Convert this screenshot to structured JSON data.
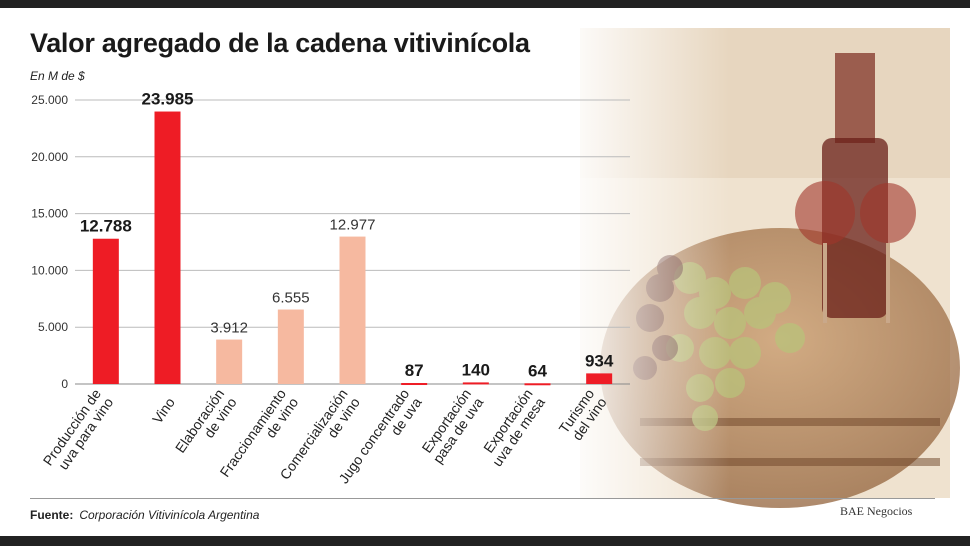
{
  "header": {
    "title": "Valor agregado de la cadena vitivinícola",
    "unit": "En M de $"
  },
  "footer": {
    "source_label": "Fuente:",
    "source_text": "Corporación Vitivinícola Argentina",
    "credit": "BAE Negocios"
  },
  "colors": {
    "highlight": "#ee1c25",
    "secondary": "#f6b9a0",
    "grid": "#bbbbbb"
  },
  "chart_data": {
    "type": "bar",
    "title": "Valor agregado de la cadena vitivinícola",
    "ylabel": "En M de $",
    "ylim": [
      0,
      25000
    ],
    "yticks": [
      "0",
      "5.000",
      "10.000",
      "15.000",
      "20.000",
      "25.000"
    ],
    "ytick_values": [
      0,
      5000,
      10000,
      15000,
      20000,
      25000
    ],
    "grid": true,
    "categories": [
      [
        "Producción de",
        "uva para vino"
      ],
      [
        "Vino"
      ],
      [
        "Elaboración",
        "de vino"
      ],
      [
        "Fraccionamiento",
        "de vino"
      ],
      [
        "Comercialización",
        "de vino"
      ],
      [
        "Jugo concentrado",
        "de uva"
      ],
      [
        "Exportación",
        "pasa de uva"
      ],
      [
        "Exportación",
        "uva de mesa"
      ],
      [
        "Turismo",
        "del vino"
      ]
    ],
    "values": [
      12788,
      23985,
      3912,
      6555,
      12977,
      87,
      140,
      64,
      934
    ],
    "labels": [
      "12.788",
      "23.985",
      "3.912",
      "6.555",
      "12.977",
      "87",
      "140",
      "64",
      "934"
    ],
    "highlight": [
      true,
      true,
      false,
      false,
      false,
      true,
      true,
      true,
      true
    ]
  }
}
